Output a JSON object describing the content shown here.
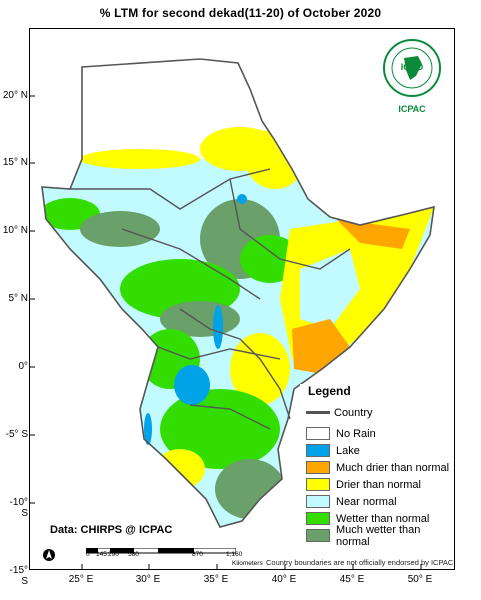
{
  "title": "% LTM  for  second dekad(11-20)  of October 2020",
  "lat_labels": [
    "20° N",
    "15° N",
    "10° N",
    "5° N",
    "0°",
    "-5° S",
    "-10° S",
    "-15° S"
  ],
  "lon_labels": [
    "25° E",
    "30° E",
    "35° E",
    "40° E",
    "45° E",
    "50° E"
  ],
  "legend": {
    "title": "Legend",
    "country_label": "Country",
    "items": [
      {
        "label": "No Rain",
        "color": "#ffffff"
      },
      {
        "label": "Lake",
        "color": "#00a2e8"
      },
      {
        "label": "Much drier than normal",
        "color": "#ffa500"
      },
      {
        "label": "Drier than normal",
        "color": "#ffff00"
      },
      {
        "label": "Near normal",
        "color": "#c2fbff"
      },
      {
        "label": "Wetter than normal",
        "color": "#33dd00"
      },
      {
        "label": "Much wetter than normal",
        "color": "#6aa06a"
      }
    ]
  },
  "data_source": "Data: CHIRPS @ ICPAC",
  "boundary_note": "Country boundaries are not officially endorsed by ICPAC",
  "scale": {
    "ticks": [
      "0",
      "145",
      "290",
      "580",
      "870",
      "1,160"
    ],
    "unit": "Kilometers"
  },
  "logo": {
    "name": "IGAD",
    "org": "ICPAC"
  }
}
